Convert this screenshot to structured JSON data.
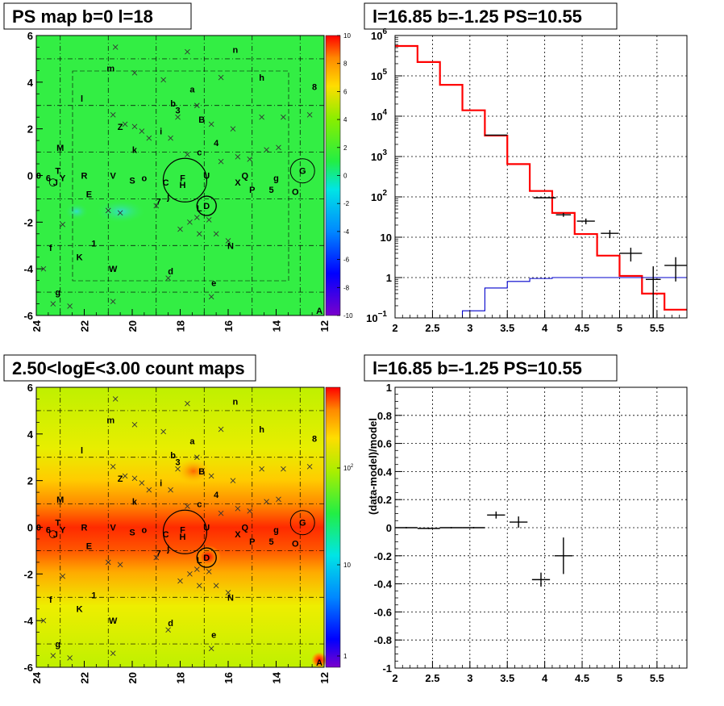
{
  "chart_data": [
    {
      "type": "heatmap",
      "title": "PS map b=0 l=18",
      "x_ticks": [
        "24",
        "22",
        "20",
        "18",
        "16",
        "14",
        "12"
      ],
      "y_ticks": [
        "-6",
        "-4",
        "-2",
        "0",
        "2",
        "4",
        "6"
      ],
      "xlim": [
        24,
        12
      ],
      "ylim": [
        -6,
        6
      ],
      "color_scale": {
        "min": -10,
        "max": 10,
        "ticks": [
          "-10",
          "-8",
          "-6",
          "-4",
          "-2",
          "0",
          "2",
          "4",
          "6",
          "8",
          "10"
        ]
      },
      "dominant_color": "#33ee33",
      "source_labels": [
        {
          "t": "m",
          "l": 20.9,
          "b": 4.6
        },
        {
          "t": "n",
          "l": 15.7,
          "b": 5.4
        },
        {
          "t": "h",
          "l": 14.6,
          "b": 4.2
        },
        {
          "t": "8",
          "l": 12.4,
          "b": 3.8
        },
        {
          "t": "a",
          "l": 17.5,
          "b": 3.7
        },
        {
          "t": "l",
          "l": 22.1,
          "b": 3.3
        },
        {
          "t": "b",
          "l": 18.3,
          "b": 3.1
        },
        {
          "t": "3",
          "l": 18.1,
          "b": 2.8
        },
        {
          "t": "B",
          "l": 17.1,
          "b": 2.4
        },
        {
          "t": "Z",
          "l": 20.5,
          "b": 2.1
        },
        {
          "t": "i",
          "l": 18.8,
          "b": 1.9
        },
        {
          "t": "M",
          "l": 23.0,
          "b": 1.2
        },
        {
          "t": "k",
          "l": 19.9,
          "b": 1.1
        },
        {
          "t": "c",
          "l": 17.2,
          "b": 1.0
        },
        {
          "t": "4",
          "l": 16.5,
          "b": 1.4
        },
        {
          "t": "G",
          "l": 12.9,
          "b": 0.2
        },
        {
          "t": "0",
          "l": 23.9,
          "b": 0.0
        },
        {
          "t": "T",
          "l": 23.1,
          "b": 0.2
        },
        {
          "t": "6",
          "l": 23.5,
          "b": -0.1
        },
        {
          "t": "J",
          "l": 23.2,
          "b": -0.3
        },
        {
          "t": "Y",
          "l": 22.9,
          "b": -0.1
        },
        {
          "t": "R",
          "l": 22.0,
          "b": 0.0
        },
        {
          "t": "V",
          "l": 20.8,
          "b": 0.0
        },
        {
          "t": "S",
          "l": 20.0,
          "b": -0.2
        },
        {
          "t": "o",
          "l": 19.5,
          "b": -0.1
        },
        {
          "t": "C",
          "l": 18.6,
          "b": -0.3
        },
        {
          "t": "F",
          "l": 17.9,
          "b": -0.1
        },
        {
          "t": "H",
          "l": 17.9,
          "b": -0.4
        },
        {
          "t": "U",
          "l": 16.9,
          "b": 0.0
        },
        {
          "t": "Q",
          "l": 15.3,
          "b": 0.0
        },
        {
          "t": "X",
          "l": 15.6,
          "b": -0.3
        },
        {
          "t": "g",
          "l": 14.0,
          "b": -0.1
        },
        {
          "t": "P",
          "l": 15.0,
          "b": -0.6
        },
        {
          "t": "5",
          "l": 14.2,
          "b": -0.6
        },
        {
          "t": "O",
          "l": 13.2,
          "b": -0.7
        },
        {
          "t": "E",
          "l": 21.8,
          "b": -0.8
        },
        {
          "t": "j",
          "l": 18.5,
          "b": -0.9
        },
        {
          "t": "7",
          "l": 18.9,
          "b": -1.1
        },
        {
          "t": "D",
          "l": 16.9,
          "b": -1.3
        },
        {
          "t": "L",
          "l": 17.2,
          "b": -1.4
        },
        {
          "t": "1",
          "l": 21.6,
          "b": -2.9
        },
        {
          "t": "f",
          "l": 23.4,
          "b": -3.1
        },
        {
          "t": "N",
          "l": 15.9,
          "b": -3.0
        },
        {
          "t": "K",
          "l": 22.2,
          "b": -3.5
        },
        {
          "t": "W",
          "l": 20.8,
          "b": -4.0
        },
        {
          "t": "d",
          "l": 18.4,
          "b": -4.1
        },
        {
          "t": "e",
          "l": 16.6,
          "b": -4.6
        },
        {
          "t": "g",
          "l": 23.1,
          "b": -5.0
        },
        {
          "t": "A",
          "l": 12.2,
          "b": -5.8
        }
      ]
    },
    {
      "type": "line",
      "title": "l=16.85 b=-1.25 PS=10.55",
      "x_ticks": [
        "2",
        "2.5",
        "3",
        "3.5",
        "4",
        "4.5",
        "5",
        "5.5"
      ],
      "y_ticks": [
        {
          "e": -1,
          "label": "10",
          "sup": "−1"
        },
        {
          "e": 0,
          "label": "1",
          "sup": ""
        },
        {
          "e": 1,
          "label": "10",
          "sup": ""
        },
        {
          "e": 2,
          "label": "10",
          "sup": "2"
        },
        {
          "e": 3,
          "label": "10",
          "sup": "3"
        },
        {
          "e": 4,
          "label": "10",
          "sup": "4"
        },
        {
          "e": 5,
          "label": "10",
          "sup": "5"
        },
        {
          "e": 6,
          "label": "10",
          "sup": "6"
        }
      ],
      "xlim": [
        2,
        5.9
      ],
      "ylim": [
        0.1,
        1000000
      ],
      "yscale": "log",
      "grid": true,
      "bin_edges": [
        2.0,
        2.3,
        2.6,
        2.9,
        3.2,
        3.5,
        3.8,
        4.1,
        4.4,
        4.7,
        5.0,
        5.3,
        5.6,
        5.9
      ],
      "series": [
        {
          "color": "#ff0000",
          "values": [
            550000,
            220000,
            60000,
            14000,
            3300,
            650,
            140,
            40,
            12,
            3.5,
            1.1,
            0.4,
            0.16
          ]
        },
        {
          "color": "#0000cc",
          "values": [
            0.1,
            0.1,
            0.1,
            0.15,
            0.55,
            0.8,
            0.95,
            1.0,
            1.0,
            1.0,
            1.0,
            1.0,
            1.0
          ]
        },
        {
          "color": "#000000",
          "style": "points",
          "points": [
            [
              3.35,
              3400,
              0.15,
              0,
              0
            ],
            [
              4.0,
              95,
              0.15,
              0,
              0
            ],
            [
              4.25,
              36,
              0.1,
              4,
              4
            ],
            [
              4.55,
              25,
              0.12,
              4,
              4
            ],
            [
              4.87,
              12.5,
              0.12,
              3,
              2.5
            ],
            [
              5.15,
              4,
              0.15,
              1.5,
              1.5
            ],
            [
              5.45,
              0.9,
              0.1,
              0.8,
              1.0
            ],
            [
              5.75,
              2,
              0.15,
              1.2,
              1.2
            ]
          ]
        }
      ]
    },
    {
      "type": "heatmap",
      "title": "2.50<logE<3.00 count maps",
      "x_ticks": [
        "24",
        "22",
        "20",
        "18",
        "16",
        "14",
        "12"
      ],
      "y_ticks": [
        "-6",
        "-4",
        "-2",
        "0",
        "2",
        "4",
        "6"
      ],
      "xlim": [
        24,
        12
      ],
      "ylim": [
        -6,
        6
      ],
      "color_scale": {
        "type": "log",
        "ticks": [
          "1",
          "10",
          "10"
        ],
        "tick_sups": [
          "",
          "",
          "2"
        ]
      },
      "dominant_color": "#ff4400"
    },
    {
      "type": "scatter",
      "title": "l=16.85 b=-1.25 PS=10.55",
      "ylabel": "(data-model)/model",
      "x_ticks": [
        "2",
        "2.5",
        "3",
        "3.5",
        "4",
        "4.5",
        "5",
        "5.5"
      ],
      "y_ticks": [
        "-1",
        "-0.8",
        "-0.6",
        "-0.4",
        "-0.2",
        "0",
        "0.2",
        "0.4",
        "0.6",
        "0.8",
        "1"
      ],
      "xlim": [
        2,
        5.9
      ],
      "ylim": [
        -1,
        1
      ],
      "grid": true,
      "points": [
        [
          2.15,
          0.0,
          0.15,
          0.005
        ],
        [
          2.45,
          -0.005,
          0.15,
          0.005
        ],
        [
          2.75,
          0.0,
          0.15,
          0.005
        ],
        [
          3.05,
          0.0,
          0.15,
          0.005
        ],
        [
          3.35,
          0.09,
          0.12,
          0.025
        ],
        [
          3.65,
          0.04,
          0.12,
          0.04
        ],
        [
          3.95,
          -0.37,
          0.12,
          0.05
        ],
        [
          4.25,
          -0.2,
          0.12,
          0.13
        ]
      ]
    }
  ]
}
